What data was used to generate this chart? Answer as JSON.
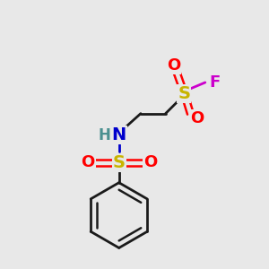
{
  "bg_color": "#e8e8e8",
  "bond_color": "#1a1a1a",
  "S_color": "#c8b400",
  "O_color": "#ff0000",
  "N_color": "#0000cc",
  "H_color": "#4a9090",
  "F_color": "#cc00cc",
  "line_width": 2.0,
  "font_size_S": 14,
  "font_size_O": 13,
  "font_size_N": 14,
  "font_size_H": 12,
  "font_size_F": 13,
  "figsize": [
    3.0,
    3.0
  ],
  "dpi": 100,
  "xlim": [
    -0.05,
    1.05
  ],
  "ylim": [
    -1.05,
    0.65
  ]
}
